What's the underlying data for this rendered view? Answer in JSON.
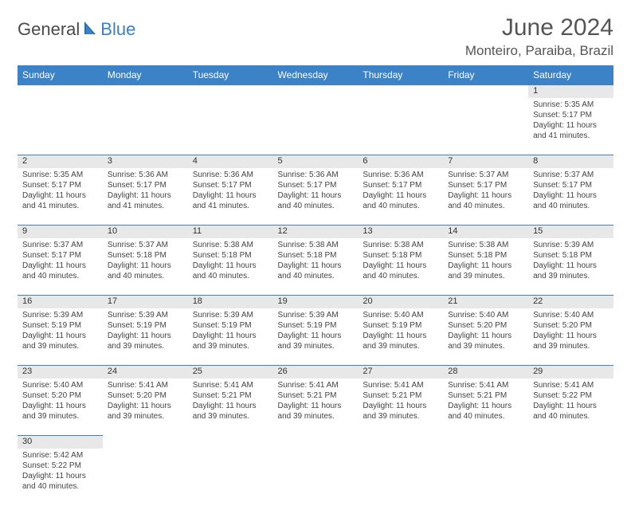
{
  "logo": {
    "text1": "General",
    "text2": "Blue"
  },
  "title": "June 2024",
  "location": "Monteiro, Paraiba, Brazil",
  "colors": {
    "header_bg": "#3b82c7",
    "header_text": "#ffffff",
    "daynum_bg": "#e8e8e8",
    "divider": "#3b82c7",
    "body_text": "#444",
    "title_text": "#555"
  },
  "day_headers": [
    "Sunday",
    "Monday",
    "Tuesday",
    "Wednesday",
    "Thursday",
    "Friday",
    "Saturday"
  ],
  "weeks": [
    [
      null,
      null,
      null,
      null,
      null,
      null,
      {
        "n": "1",
        "sr": "5:35 AM",
        "ss": "5:17 PM",
        "dl": "11 hours and 41 minutes."
      }
    ],
    [
      {
        "n": "2",
        "sr": "5:35 AM",
        "ss": "5:17 PM",
        "dl": "11 hours and 41 minutes."
      },
      {
        "n": "3",
        "sr": "5:36 AM",
        "ss": "5:17 PM",
        "dl": "11 hours and 41 minutes."
      },
      {
        "n": "4",
        "sr": "5:36 AM",
        "ss": "5:17 PM",
        "dl": "11 hours and 41 minutes."
      },
      {
        "n": "5",
        "sr": "5:36 AM",
        "ss": "5:17 PM",
        "dl": "11 hours and 40 minutes."
      },
      {
        "n": "6",
        "sr": "5:36 AM",
        "ss": "5:17 PM",
        "dl": "11 hours and 40 minutes."
      },
      {
        "n": "7",
        "sr": "5:37 AM",
        "ss": "5:17 PM",
        "dl": "11 hours and 40 minutes."
      },
      {
        "n": "8",
        "sr": "5:37 AM",
        "ss": "5:17 PM",
        "dl": "11 hours and 40 minutes."
      }
    ],
    [
      {
        "n": "9",
        "sr": "5:37 AM",
        "ss": "5:17 PM",
        "dl": "11 hours and 40 minutes."
      },
      {
        "n": "10",
        "sr": "5:37 AM",
        "ss": "5:18 PM",
        "dl": "11 hours and 40 minutes."
      },
      {
        "n": "11",
        "sr": "5:38 AM",
        "ss": "5:18 PM",
        "dl": "11 hours and 40 minutes."
      },
      {
        "n": "12",
        "sr": "5:38 AM",
        "ss": "5:18 PM",
        "dl": "11 hours and 40 minutes."
      },
      {
        "n": "13",
        "sr": "5:38 AM",
        "ss": "5:18 PM",
        "dl": "11 hours and 40 minutes."
      },
      {
        "n": "14",
        "sr": "5:38 AM",
        "ss": "5:18 PM",
        "dl": "11 hours and 39 minutes."
      },
      {
        "n": "15",
        "sr": "5:39 AM",
        "ss": "5:18 PM",
        "dl": "11 hours and 39 minutes."
      }
    ],
    [
      {
        "n": "16",
        "sr": "5:39 AM",
        "ss": "5:19 PM",
        "dl": "11 hours and 39 minutes."
      },
      {
        "n": "17",
        "sr": "5:39 AM",
        "ss": "5:19 PM",
        "dl": "11 hours and 39 minutes."
      },
      {
        "n": "18",
        "sr": "5:39 AM",
        "ss": "5:19 PM",
        "dl": "11 hours and 39 minutes."
      },
      {
        "n": "19",
        "sr": "5:39 AM",
        "ss": "5:19 PM",
        "dl": "11 hours and 39 minutes."
      },
      {
        "n": "20",
        "sr": "5:40 AM",
        "ss": "5:19 PM",
        "dl": "11 hours and 39 minutes."
      },
      {
        "n": "21",
        "sr": "5:40 AM",
        "ss": "5:20 PM",
        "dl": "11 hours and 39 minutes."
      },
      {
        "n": "22",
        "sr": "5:40 AM",
        "ss": "5:20 PM",
        "dl": "11 hours and 39 minutes."
      }
    ],
    [
      {
        "n": "23",
        "sr": "5:40 AM",
        "ss": "5:20 PM",
        "dl": "11 hours and 39 minutes."
      },
      {
        "n": "24",
        "sr": "5:41 AM",
        "ss": "5:20 PM",
        "dl": "11 hours and 39 minutes."
      },
      {
        "n": "25",
        "sr": "5:41 AM",
        "ss": "5:21 PM",
        "dl": "11 hours and 39 minutes."
      },
      {
        "n": "26",
        "sr": "5:41 AM",
        "ss": "5:21 PM",
        "dl": "11 hours and 39 minutes."
      },
      {
        "n": "27",
        "sr": "5:41 AM",
        "ss": "5:21 PM",
        "dl": "11 hours and 39 minutes."
      },
      {
        "n": "28",
        "sr": "5:41 AM",
        "ss": "5:21 PM",
        "dl": "11 hours and 40 minutes."
      },
      {
        "n": "29",
        "sr": "5:41 AM",
        "ss": "5:22 PM",
        "dl": "11 hours and 40 minutes."
      }
    ],
    [
      {
        "n": "30",
        "sr": "5:42 AM",
        "ss": "5:22 PM",
        "dl": "11 hours and 40 minutes."
      },
      null,
      null,
      null,
      null,
      null,
      null
    ]
  ],
  "labels": {
    "sunrise": "Sunrise: ",
    "sunset": "Sunset: ",
    "daylight": "Daylight: "
  }
}
